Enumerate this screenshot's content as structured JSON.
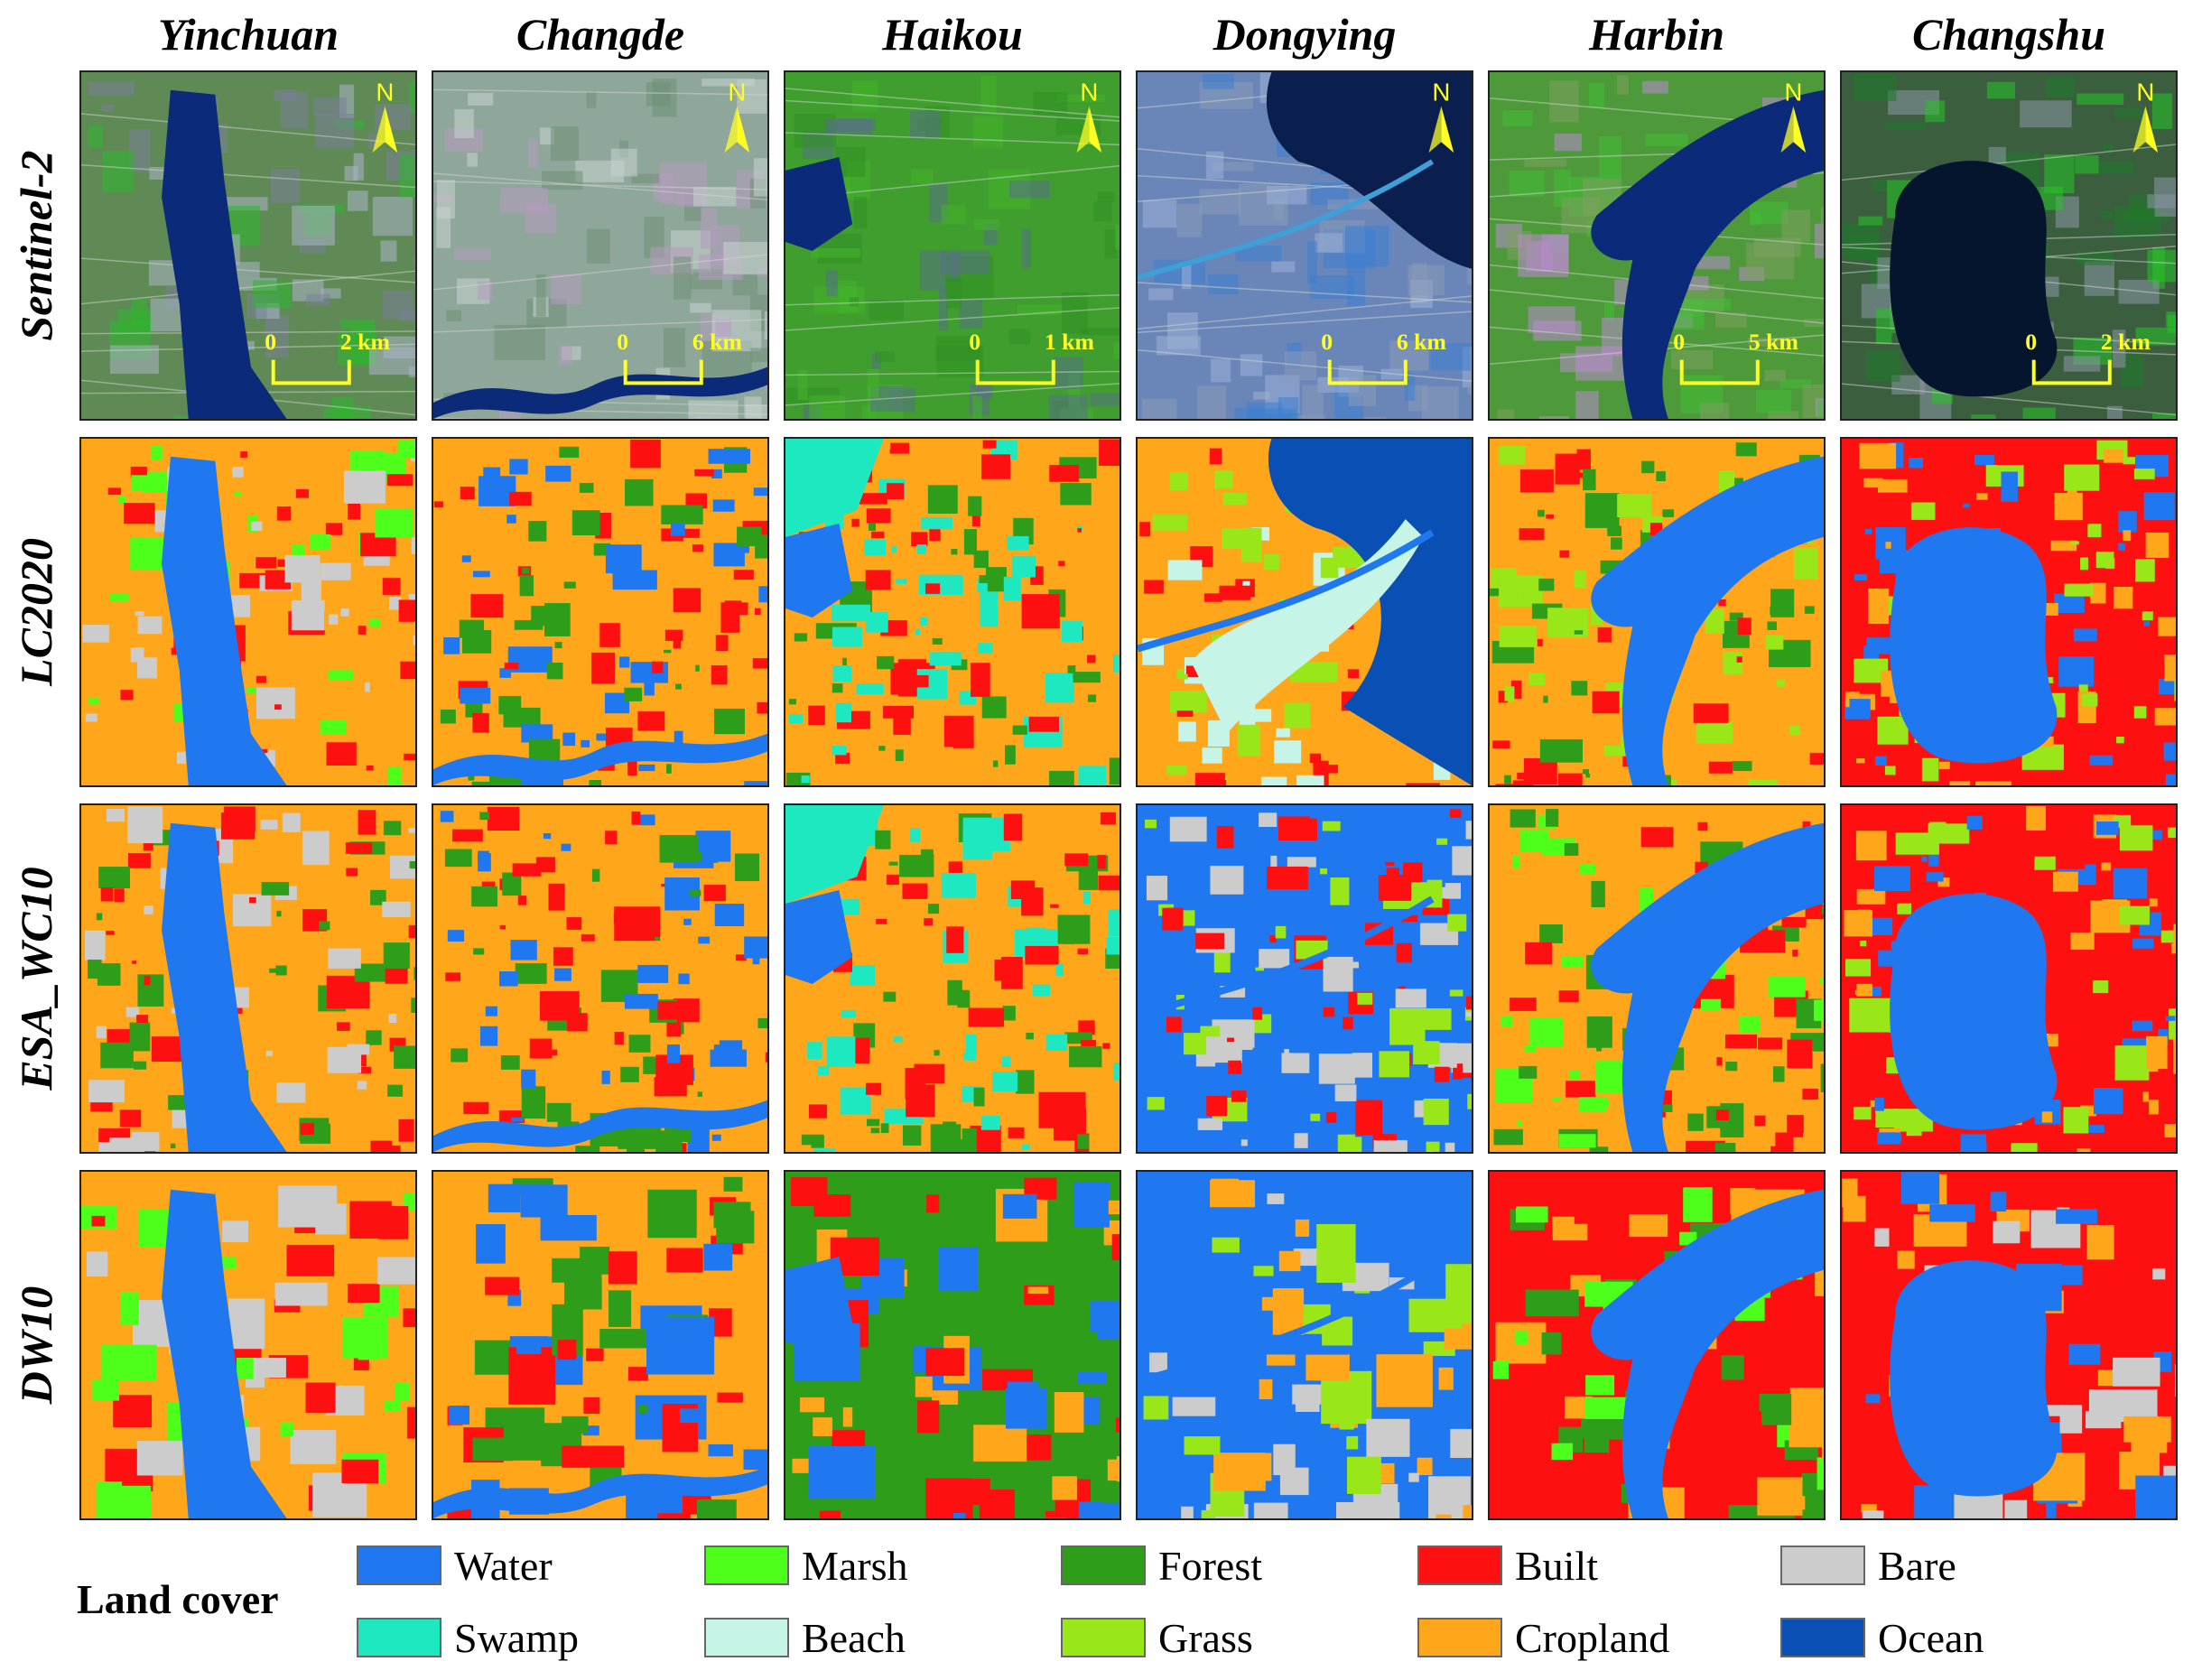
{
  "columns": [
    "Yinchuan",
    "Changde",
    "Haikou",
    "Dongying",
    "Harbin",
    "Changshu"
  ],
  "rows": [
    "Sentinel-2",
    "LC2020",
    "ESA_WC10",
    "DW10"
  ],
  "north_label": "N",
  "scalebars": [
    {
      "start": "0",
      "end": "2 km"
    },
    {
      "start": "0",
      "end": "6 km"
    },
    {
      "start": "0",
      "end": "1 km"
    },
    {
      "start": "0",
      "end": "6 km"
    },
    {
      "start": "0",
      "end": "5 km"
    },
    {
      "start": "0",
      "end": "2 km"
    }
  ],
  "legend": {
    "title": "Land cover",
    "items": [
      {
        "label": "Water",
        "color": "#1f78f0"
      },
      {
        "label": "Marsh",
        "color": "#4dff1a"
      },
      {
        "label": "Forest",
        "color": "#2e9e1a"
      },
      {
        "label": "Built",
        "color": "#ff1010"
      },
      {
        "label": "Bare",
        "color": "#cccccc"
      },
      {
        "label": "Swamp",
        "color": "#1de8c0"
      },
      {
        "label": "Beach",
        "color": "#c6f5e8"
      },
      {
        "label": "Grass",
        "color": "#99e619"
      },
      {
        "label": "Cropland",
        "color": "#ffa61a"
      },
      {
        "label": "Ocean",
        "color": "#0a4fb3"
      }
    ]
  },
  "accent_colors": {
    "annotation": "#ffff22",
    "frame": "#222222"
  },
  "icons": {
    "north_arrow": "north-arrow-icon"
  }
}
